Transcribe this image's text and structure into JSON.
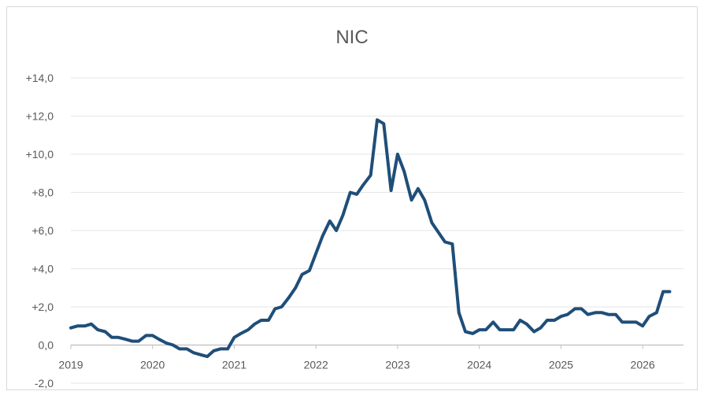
{
  "chart_data": {
    "type": "line",
    "title": "NIC",
    "xlabel": "",
    "ylabel": "",
    "x_ticks": [
      "2019",
      "2020",
      "2021",
      "2022",
      "2023",
      "2024",
      "2025",
      "2026"
    ],
    "y_ticks": [
      "-2,0",
      "0,0",
      "+2,0",
      "+4,0",
      "+6,0",
      "+8,0",
      "+10,0",
      "+12,0",
      "+14,0"
    ],
    "ylim": [
      -2,
      14
    ],
    "xlim": [
      2019,
      2026.33
    ],
    "grid": true,
    "color": "#1f4e79",
    "series": [
      {
        "x": [
          2019.0,
          2019.08,
          2019.17,
          2019.25,
          2019.33,
          2019.42,
          2019.5,
          2019.58,
          2019.67,
          2019.75,
          2019.83,
          2019.92,
          2020.0,
          2020.08,
          2020.17,
          2020.25,
          2020.33,
          2020.42,
          2020.5,
          2020.58,
          2020.67,
          2020.75,
          2020.83,
          2020.92,
          2021.0,
          2021.08,
          2021.17,
          2021.25,
          2021.33,
          2021.42,
          2021.5,
          2021.58,
          2021.67,
          2021.75,
          2021.83,
          2021.92,
          2022.0,
          2022.08,
          2022.17,
          2022.25,
          2022.33,
          2022.42,
          2022.5,
          2022.58,
          2022.67,
          2022.75,
          2022.83,
          2022.92,
          2023.0,
          2023.08,
          2023.17,
          2023.25,
          2023.33,
          2023.42,
          2023.5,
          2023.58,
          2023.67,
          2023.75,
          2023.83,
          2023.92,
          2024.0,
          2024.08,
          2024.17,
          2024.25,
          2024.33,
          2024.42,
          2024.5,
          2024.58,
          2024.67,
          2024.75,
          2024.83,
          2024.92,
          2025.0,
          2025.08,
          2025.17,
          2025.25,
          2025.33,
          2025.42,
          2025.5,
          2025.58,
          2025.67,
          2025.75,
          2025.83,
          2025.92,
          2026.0,
          2026.08,
          2026.17,
          2026.25,
          2026.33
        ],
        "y": [
          0.9,
          1.0,
          1.0,
          1.1,
          0.8,
          0.7,
          0.4,
          0.4,
          0.3,
          0.2,
          0.2,
          0.5,
          0.5,
          0.3,
          0.1,
          0.0,
          -0.2,
          -0.2,
          -0.4,
          -0.5,
          -0.6,
          -0.3,
          -0.2,
          -0.2,
          0.4,
          0.6,
          0.8,
          1.1,
          1.3,
          1.3,
          1.9,
          2.0,
          2.5,
          3.0,
          3.7,
          3.9,
          4.8,
          5.7,
          6.5,
          6.0,
          6.8,
          8.0,
          7.9,
          8.4,
          8.9,
          11.8,
          11.6,
          8.1,
          10.0,
          9.1,
          7.6,
          8.2,
          7.6,
          6.4,
          5.9,
          5.4,
          5.3,
          1.7,
          0.7,
          0.6,
          0.8,
          0.8,
          1.2,
          0.8,
          0.8,
          0.8,
          1.3,
          1.1,
          0.7,
          0.9,
          1.3,
          1.3,
          1.5,
          1.6,
          1.9,
          1.9,
          1.6,
          1.7,
          1.7,
          1.6,
          1.6,
          1.2,
          1.2,
          1.2,
          1.0,
          1.5,
          1.7,
          2.8,
          2.8
        ]
      }
    ]
  }
}
